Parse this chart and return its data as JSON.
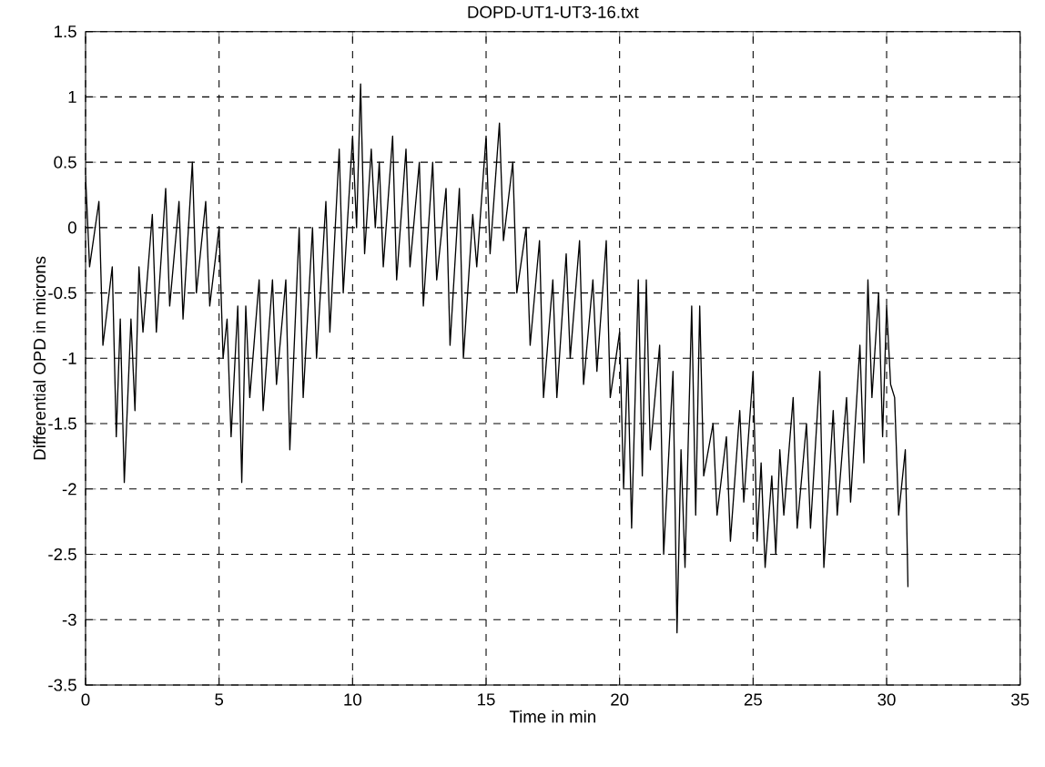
{
  "chart_data": {
    "type": "line",
    "title": "DOPD-UT1-UT3-16.txt",
    "xlabel": "Time in min",
    "ylabel": "Differential OPD in microns",
    "x": [
      0,
      0.15,
      0.5,
      0.65,
      1.0,
      1.15,
      1.3,
      1.45,
      1.7,
      1.85,
      2.0,
      2.15,
      2.5,
      2.65,
      3.0,
      3.15,
      3.5,
      3.65,
      4.0,
      4.15,
      4.5,
      4.65,
      5.0,
      5.15,
      5.3,
      5.45,
      5.7,
      5.85,
      6.0,
      6.15,
      6.5,
      6.65,
      7.0,
      7.15,
      7.5,
      7.65,
      8.0,
      8.15,
      8.5,
      8.65,
      9.0,
      9.15,
      9.5,
      9.65,
      10.0,
      10.15,
      10.3,
      10.45,
      10.7,
      10.85,
      11.0,
      11.15,
      11.5,
      11.65,
      12.0,
      12.15,
      12.5,
      12.65,
      13.0,
      13.15,
      13.5,
      13.65,
      14.0,
      14.15,
      14.5,
      14.65,
      15.0,
      15.15,
      15.5,
      15.65,
      16.0,
      16.15,
      16.5,
      16.65,
      17.0,
      17.15,
      17.5,
      17.65,
      18.0,
      18.15,
      18.5,
      18.65,
      19.0,
      19.15,
      19.5,
      19.65,
      20.0,
      20.15,
      20.3,
      20.45,
      20.7,
      20.85,
      21.0,
      21.15,
      21.5,
      21.65,
      22.0,
      22.15,
      22.3,
      22.45,
      22.7,
      22.85,
      23.0,
      23.15,
      23.5,
      23.65,
      24.0,
      24.15,
      24.5,
      24.65,
      25.0,
      25.15,
      25.3,
      25.45,
      25.7,
      25.85,
      26.0,
      26.15,
      26.5,
      26.65,
      27.0,
      27.15,
      27.5,
      27.65,
      28.0,
      28.15,
      28.5,
      28.65,
      29.0,
      29.15,
      29.3,
      29.45,
      29.7,
      29.85,
      30.0,
      30.15,
      30.3,
      30.45,
      30.7,
      30.8
    ],
    "series": [
      {
        "color": "#000000",
        "values": [
          0.4,
          -0.3,
          0.2,
          -0.9,
          -0.3,
          -1.6,
          -0.7,
          -1.95,
          -0.7,
          -1.4,
          -0.3,
          -0.8,
          0.1,
          -0.8,
          0.3,
          -0.6,
          0.2,
          -0.7,
          0.5,
          -0.5,
          0.2,
          -0.6,
          0.0,
          -1.0,
          -0.7,
          -1.6,
          -0.6,
          -1.95,
          -0.6,
          -1.3,
          -0.4,
          -1.4,
          -0.4,
          -1.2,
          -0.4,
          -1.7,
          0.0,
          -1.3,
          0.0,
          -1.0,
          0.2,
          -0.8,
          0.6,
          -0.5,
          0.7,
          0.0,
          1.1,
          -0.2,
          0.6,
          0.0,
          0.5,
          -0.3,
          0.7,
          -0.4,
          0.6,
          -0.3,
          0.5,
          -0.6,
          0.5,
          -0.4,
          0.3,
          -0.9,
          0.3,
          -1.0,
          0.1,
          -0.3,
          0.7,
          -0.2,
          0.8,
          -0.1,
          0.5,
          -0.5,
          0.0,
          -0.9,
          -0.1,
          -1.3,
          -0.4,
          -1.3,
          -0.2,
          -1.0,
          -0.1,
          -1.2,
          -0.4,
          -1.1,
          -0.1,
          -1.3,
          -0.8,
          -2.0,
          -1.0,
          -2.3,
          -0.4,
          -1.9,
          -0.4,
          -1.7,
          -0.9,
          -2.5,
          -1.1,
          -3.1,
          -1.7,
          -2.6,
          -0.6,
          -2.2,
          -0.6,
          -1.9,
          -1.5,
          -2.2,
          -1.6,
          -2.4,
          -1.4,
          -2.1,
          -1.1,
          -2.4,
          -1.8,
          -2.6,
          -1.9,
          -2.5,
          -1.7,
          -2.2,
          -1.3,
          -2.3,
          -1.5,
          -2.3,
          -1.1,
          -2.6,
          -1.4,
          -2.2,
          -1.3,
          -2.1,
          -0.9,
          -1.8,
          -0.4,
          -1.3,
          -0.5,
          -1.6,
          -0.6,
          -1.2,
          -1.3,
          -2.2,
          -1.7,
          -2.75
        ]
      }
    ],
    "xlim": [
      0,
      35
    ],
    "ylim": [
      -3.5,
      1.5
    ],
    "xticks": [
      0,
      5,
      10,
      15,
      20,
      25,
      30,
      35
    ],
    "yticks": [
      -3.5,
      -3,
      -2.5,
      -2,
      -1.5,
      -1,
      -0.5,
      0,
      0.5,
      1,
      1.5
    ],
    "grid": true
  }
}
